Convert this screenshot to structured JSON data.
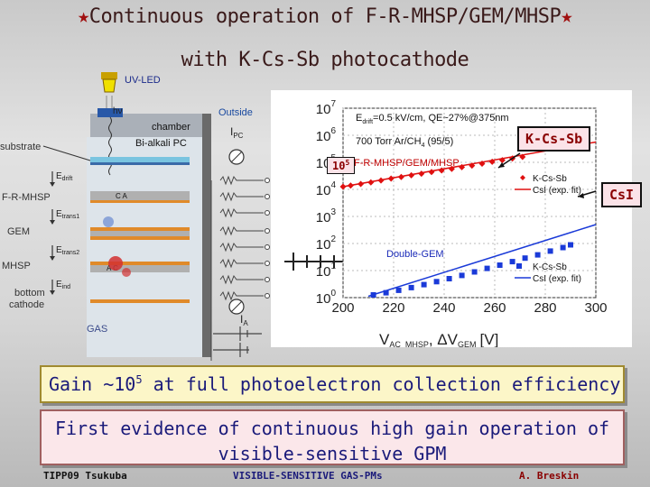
{
  "title": {
    "line1_text": "Continuous operation of F-R-MHSP/GEM/MHSP",
    "star_symbol": "★",
    "line2": "with K-Cs-Sb photocathode"
  },
  "diagram": {
    "uv_led": "UV-LED",
    "hv": "hν",
    "outside": "Outside",
    "chamber": "chamber",
    "bialkali_pc": "Bi-alkali PC",
    "substrate": "substrate",
    "ipc_label": "I",
    "ipc_sub": "PC",
    "e_drift_label": "E",
    "e_drift_sub": "drift",
    "fr_mhsp": "F-R-MHSP",
    "ca_label": "C A",
    "e_trans1_label": "E",
    "e_trans1_sub": "trans1",
    "gem": "GEM",
    "e_trans2_label": "E",
    "e_trans2_sub": "trans2",
    "mhsp": "MHSP",
    "ac_label": "A C",
    "e_ind_label": "E",
    "e_ind_sub": "ind",
    "bottom": "bottom",
    "cathode": "cathode",
    "ia_label": "I",
    "ia_sub": "A",
    "gas": "GAS"
  },
  "badges": {
    "kcssb": "K-Cs-Sb",
    "csi": "CsI",
    "gain_label": "10",
    "gain_exp": "5"
  },
  "chart_data": {
    "type": "scatter",
    "xlabel_main": "V",
    "xlabel_sub1": "AC_MHSP",
    "xlabel_mid": ", ΔV",
    "xlabel_sub2": "GEM",
    "xlabel_unit": "[V]",
    "xlim": [
      200,
      300
    ],
    "ylim_log10": [
      0,
      7
    ],
    "yscale": "log",
    "x_ticks": [
      "200",
      "220",
      "240",
      "260",
      "280",
      "300"
    ],
    "y_tick_base": "10",
    "y_tick_exps": [
      "0",
      "1",
      "2",
      "3",
      "4",
      "5",
      "6",
      "7"
    ],
    "annotations": {
      "line1_pre": "E",
      "line1_sub": "drift",
      "line1_post": "=0.5 kV/cm, QE~27%@375nm",
      "line2_pre": "700 Torr Ar/CH",
      "line2_sub": "4",
      "line2_post": " (95/5)",
      "group_upper": "F-R-MHSP/GEM/MHSP",
      "group_lower": "Double-GEM"
    },
    "legend_upper": {
      "position": "right",
      "kcssb": "K-Cs-Sb",
      "csi": "CsI (exp. fit)"
    },
    "legend_lower": {
      "position": "lower-right",
      "kcssb": "K-Cs-Sb",
      "csi": "CsI (exp. fit)"
    },
    "colors": {
      "upper": "#e01010",
      "lower": "#1a3ad8"
    },
    "series": [
      {
        "legend": "legend_upper.kcssb",
        "marker": "diamond",
        "color": "#e01010",
        "x": [
          200,
          203,
          207,
          211,
          215,
          219,
          223,
          227,
          231,
          235,
          239,
          243,
          247,
          251,
          255,
          259,
          263,
          267,
          271
        ],
        "log10y": [
          4.1,
          4.14,
          4.2,
          4.26,
          4.33,
          4.4,
          4.46,
          4.52,
          4.58,
          4.64,
          4.7,
          4.76,
          4.82,
          4.88,
          4.95,
          5.02,
          5.08,
          5.14,
          5.2
        ]
      },
      {
        "legend": "legend_upper.csi",
        "line": true,
        "color": "#e01010",
        "x": [
          200,
          300
        ],
        "log10y": [
          4.1,
          5.75
        ]
      },
      {
        "legend": "legend_lower.kcssb",
        "marker": "square",
        "color": "#1a3ad8",
        "x": [
          212,
          217,
          222,
          227,
          232,
          237,
          242,
          247,
          252,
          257,
          262,
          267,
          272,
          277,
          282,
          287,
          290
        ],
        "log10y": [
          0.1,
          0.18,
          0.27,
          0.37,
          0.48,
          0.59,
          0.7,
          0.82,
          0.95,
          1.08,
          1.2,
          1.33,
          1.46,
          1.58,
          1.72,
          1.85,
          1.95
        ]
      },
      {
        "legend": "legend_lower.csi",
        "line": true,
        "color": "#1a3ad8",
        "x": [
          210,
          300
        ],
        "log10y": [
          0.05,
          2.7
        ]
      }
    ]
  },
  "box1": {
    "pre": "Gain ~10",
    "sup": "5",
    "post": " at full photoelectron collection efficiency"
  },
  "box2": {
    "text": "First evidence of continuous high gain operation of visible-sensitive GPM"
  },
  "footer": {
    "left": "TIPP09 Tsukuba",
    "center": "VISIBLE-SENSITIVE GAS-PMs",
    "right": "A. Breskin"
  }
}
